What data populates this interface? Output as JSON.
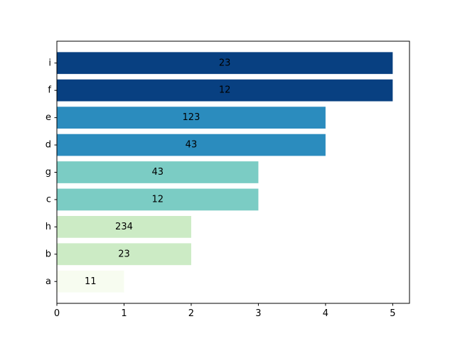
{
  "chart_data": {
    "type": "bar",
    "orientation": "horizontal",
    "title": "",
    "xlabel": "",
    "ylabel": "",
    "xlim": [
      0,
      5.25
    ],
    "x_ticks": [
      0,
      1,
      2,
      3,
      4,
      5
    ],
    "grid": false,
    "legend": "none",
    "categories": [
      "a",
      "b",
      "h",
      "c",
      "g",
      "d",
      "e",
      "f",
      "i"
    ],
    "values": [
      1,
      2,
      2,
      3,
      3,
      4,
      4,
      5,
      5
    ],
    "bar_labels": [
      "11",
      "23",
      "234",
      "12",
      "43",
      "43",
      "123",
      "12",
      "23"
    ],
    "bar_colors": [
      "#f7fcf0",
      "#ccebc5",
      "#ccebc5",
      "#7bccc4",
      "#7bccc4",
      "#2b8cbe",
      "#2b8cbe",
      "#084081",
      "#084081"
    ]
  }
}
